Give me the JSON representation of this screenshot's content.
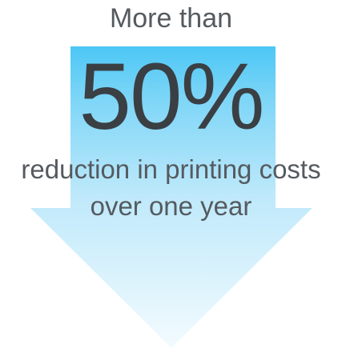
{
  "header": {
    "prefix_text": "More than"
  },
  "stat": {
    "value": "50%"
  },
  "caption": {
    "line1": "reduction in printing costs",
    "line2": "over one year"
  },
  "colors": {
    "arrow_top": "#4cc7f5",
    "arrow_bottom": "#f3fbfe",
    "number_text": "#3a3f44",
    "body_text": "#555a5f"
  },
  "icons": {
    "arrow": "down-arrow-icon"
  }
}
